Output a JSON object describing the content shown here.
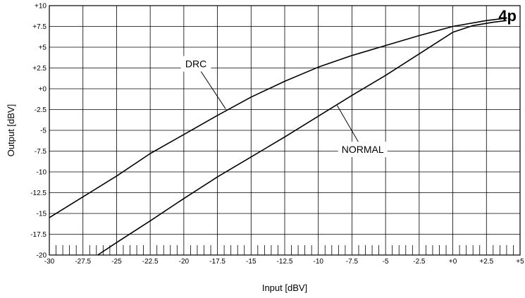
{
  "chart_data": {
    "type": "line",
    "xlabel": "Input [dBV]",
    "ylabel": "Output [dBV]",
    "xlim": [
      -30,
      5
    ],
    "ylim": [
      -20,
      10
    ],
    "x_ticks": [
      "-30",
      "-27.5",
      "-25",
      "-22.5",
      "-20",
      "-17.5",
      "-15",
      "-12.5",
      "-10",
      "-7.5",
      "-5",
      "-2.5",
      "+0",
      "+2.5",
      "+5"
    ],
    "y_ticks": [
      "+10",
      "+7.5",
      "+5",
      "+2.5",
      "+0",
      "-2.5",
      "-5",
      "-7.5",
      "-10",
      "-12.5",
      "-15",
      "-17.5",
      "-20"
    ],
    "grid": true,
    "logo": "4p",
    "series": [
      {
        "name": "DRC",
        "x": [
          -30,
          -27.5,
          -25,
          -22.5,
          -20,
          -17.5,
          -15,
          -12.5,
          -10,
          -7.5,
          -5,
          -2.5,
          0,
          2.5,
          4
        ],
        "y": [
          -15.5,
          -13,
          -10.5,
          -7.8,
          -5.5,
          -3.2,
          -1,
          0.9,
          2.6,
          4,
          5.2,
          6.4,
          7.5,
          8.2,
          8.5
        ]
      },
      {
        "name": "NORMAL",
        "x": [
          -26.4,
          -25,
          -22.5,
          -20,
          -17.5,
          -15,
          -12.5,
          -10,
          -7.5,
          -5,
          -2.5,
          0,
          1.5,
          3,
          4
        ],
        "y": [
          -20,
          -18.5,
          -15.9,
          -13.2,
          -10.6,
          -8.2,
          -5.8,
          -3.3,
          -0.8,
          1.6,
          4.2,
          6.8,
          7.6,
          8,
          8.2
        ]
      }
    ],
    "annotations": [
      {
        "text": "DRC",
        "series": "DRC",
        "label_x": -19.1,
        "label_y": 3.0,
        "arrow_to_x": -16.9,
        "arrow_to_y": -2.4
      },
      {
        "text": "NORMAL",
        "series": "NORMAL",
        "label_x": -6.7,
        "label_y": -7.3,
        "arrow_to_x": -8.6,
        "arrow_to_y": -2.0
      }
    ]
  }
}
